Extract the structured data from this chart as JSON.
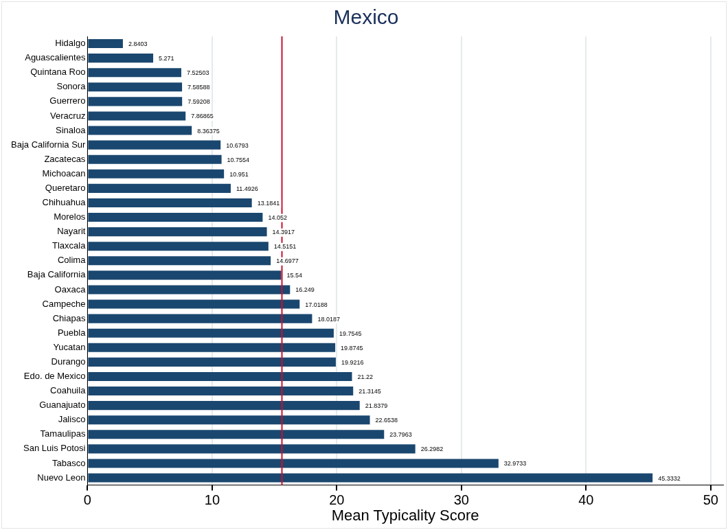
{
  "chart_data": {
    "type": "bar",
    "orientation": "horizontal",
    "title": "Mexico",
    "xlabel": "Mean Typicality Score",
    "categories": [
      "Hidalgo",
      "Aguascalientes",
      "Quintana Roo",
      "Sonora",
      "Guerrero",
      "Veracruz",
      "Sinaloa",
      "Baja California Sur",
      "Zacatecas",
      "Michoacan",
      "Queretaro",
      "Chihuahua",
      "Morelos",
      "Nayarit",
      "Tlaxcala",
      "Colima",
      "Baja California",
      "Oaxaca",
      "Campeche",
      "Chiapas",
      "Puebla",
      "Yucatan",
      "Durango",
      "Edo. de Mexico",
      "Coahuila",
      "Guanajuato",
      "Jalisco",
      "Tamaulipas",
      "San Luis Potosi",
      "Tabasco",
      "Nuevo Leon"
    ],
    "values": [
      2.8403,
      5.271,
      7.52503,
      7.58588,
      7.59208,
      7.86865,
      8.36375,
      10.6793,
      10.7554,
      10.951,
      11.4926,
      13.1841,
      14.052,
      14.3917,
      14.5151,
      14.6977,
      15.54,
      16.249,
      17.0188,
      18.0187,
      19.7545,
      19.8745,
      19.9216,
      21.22,
      21.3145,
      21.8379,
      22.6538,
      23.7963,
      26.2982,
      32.9733,
      45.3332
    ],
    "color": "#1a476f",
    "data_labels": true,
    "xlim": [
      0,
      51
    ],
    "xticks": [
      0,
      10,
      20,
      30,
      40,
      50
    ],
    "grid": "x",
    "ref_lines": [
      {
        "axis": "x",
        "value": 15.6,
        "color": "#c8102e"
      }
    ]
  }
}
